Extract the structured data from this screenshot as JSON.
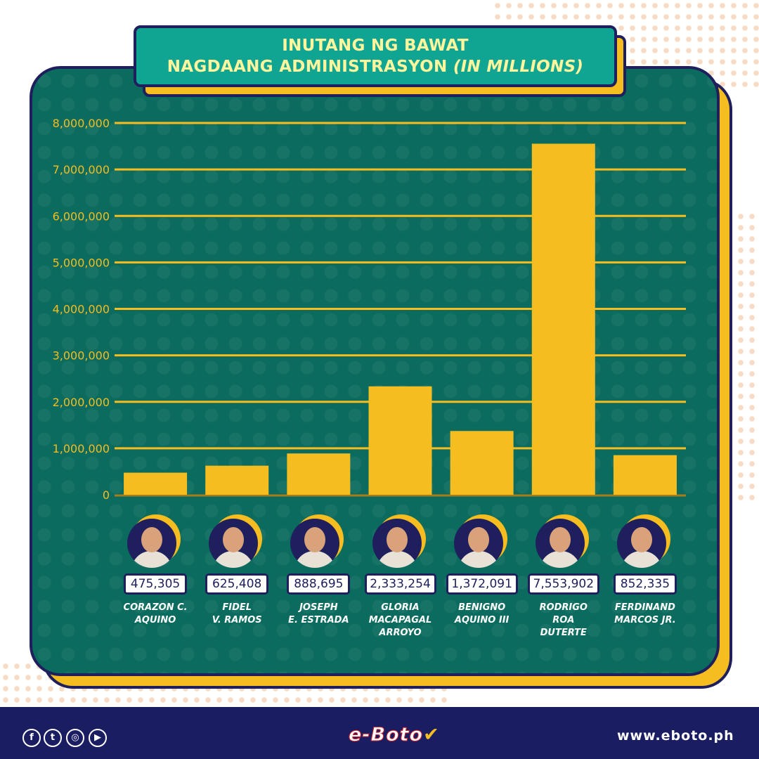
{
  "title": {
    "line1": "INUTANG NG BAWAT",
    "line2": "NAGDAANG ADMINISTRASYON",
    "line2_note": "(IN MILLIONS)"
  },
  "chart_data": {
    "type": "bar",
    "title": "INUTANG NG BAWAT NAGDAANG ADMINISTRASYON (IN MILLIONS)",
    "xlabel": "",
    "ylabel": "",
    "ylim": [
      0,
      8000000
    ],
    "y_ticks": [
      0,
      1000000,
      2000000,
      3000000,
      4000000,
      5000000,
      6000000,
      7000000,
      8000000
    ],
    "y_tick_labels": [
      "0",
      "1,000,000",
      "2,000,000",
      "3,000,000",
      "4,000,000",
      "5,000,000",
      "6,000,000",
      "7,000,000",
      "8,000,000"
    ],
    "grid": true,
    "bar_color": "#f5bd1f",
    "categories": [
      "CORAZON C.\nAQUINO",
      "FIDEL\nV. RAMOS",
      "JOSEPH\nE. ESTRADA",
      "GLORIA\nMACAPAGAL\nARROYO",
      "BENIGNO\nAQUINO III",
      "RODRIGO\nROA\nDUTERTE",
      "FERDINAND\nMARCOS JR."
    ],
    "values": [
      475305,
      625408,
      888695,
      2333254,
      1372091,
      7553902,
      852335
    ],
    "value_labels": [
      "475,305",
      "625,408",
      "888,695",
      "2,333,254",
      "1,372,091",
      "7,553,902",
      "852,335"
    ]
  },
  "footer": {
    "social_icons": [
      "facebook-icon",
      "twitter-icon",
      "instagram-icon",
      "youtube-icon"
    ],
    "logo_text": "e-Boto",
    "website": "www.eboto.ph"
  },
  "colors": {
    "board": "#0b6b5e",
    "accent": "#f5bd1f",
    "navy": "#1e1f5c",
    "title_bg": "#10a592",
    "title_text": "#fff59d"
  }
}
